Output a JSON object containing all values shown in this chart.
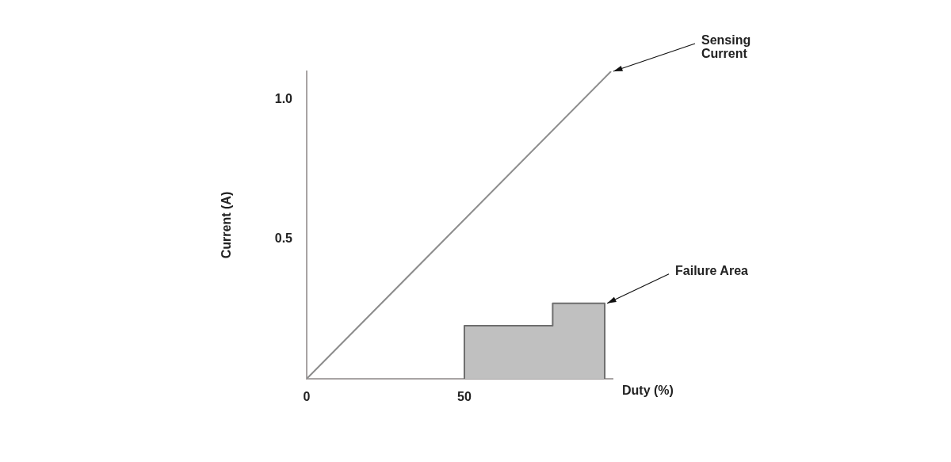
{
  "chart_data": {
    "type": "line",
    "xlabel": "Duty (%)",
    "ylabel": "Current (A)",
    "xlim": [
      0,
      97
    ],
    "ylim": [
      0,
      1.1
    ],
    "xticks": [
      0,
      50
    ],
    "yticks": [
      0.5,
      {
        "value": 1,
        "label": "1.0"
      }
    ],
    "grid": false,
    "legend": false,
    "marker": "none",
    "series": [
      {
        "name": "Sensing Current",
        "color": "#8c8c8c",
        "x": [
          0,
          96.5
        ],
        "values": [
          0,
          1.1
        ]
      },
      {
        "name": "Failure Area",
        "type": "area",
        "color": "#c0c0c0",
        "x": [
          50,
          50,
          78,
          78,
          94.5,
          94.5
        ],
        "values": [
          0,
          0.19,
          0.19,
          0.27,
          0.27,
          0
        ]
      }
    ]
  }
}
